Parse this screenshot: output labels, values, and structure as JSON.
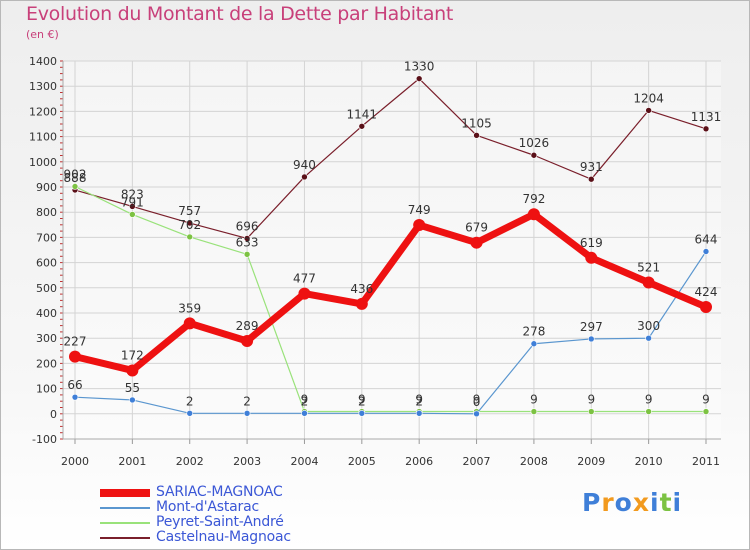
{
  "chart_data": {
    "type": "line",
    "title": "Evolution du Montant de la Dette par Habitant",
    "subtitle": "(en €)",
    "xlabel": "",
    "ylabel": "",
    "categories": [
      "2000",
      "2001",
      "2002",
      "2003",
      "2004",
      "2005",
      "2006",
      "2007",
      "2008",
      "2009",
      "2010",
      "2011"
    ],
    "ylim": [
      -100,
      1400
    ],
    "yticks": [
      -100,
      0,
      100,
      200,
      300,
      400,
      500,
      600,
      700,
      800,
      900,
      1000,
      1100,
      1200,
      1300,
      1400
    ],
    "grid": true,
    "legend_position": "bottom-left",
    "series": [
      {
        "name": "Castelnau-Magnoac",
        "color": "#7a1f2b",
        "values": [
          888,
          823,
          757,
          696,
          940,
          1141,
          1330,
          1105,
          1026,
          931,
          1204,
          1131
        ]
      },
      {
        "name": "Peyret-Saint-André",
        "color": "#99e27a",
        "values": [
          902,
          791,
          702,
          633,
          9,
          9,
          9,
          9,
          9,
          9,
          9,
          9
        ]
      },
      {
        "name": "Mont-d'Astarac",
        "color": "#5a96cf",
        "values": [
          66,
          55,
          2,
          2,
          2,
          2,
          2,
          0,
          278,
          297,
          300,
          644
        ]
      },
      {
        "name": "SARIAC-MAGNOAC",
        "color": "#ee1111",
        "values": [
          227,
          172,
          359,
          289,
          477,
          436,
          749,
          679,
          792,
          619,
          521,
          424
        ]
      }
    ],
    "legend_order": [
      "SARIAC-MAGNOAC",
      "Mont-d'Astarac",
      "Peyret-Saint-André",
      "Castelnau-Magnoac"
    ]
  },
  "logo": {
    "letters": [
      "P",
      "r",
      "o",
      "x",
      "i",
      "t",
      "i"
    ],
    "colors": [
      "#3f7fd8",
      "#f29a1e",
      "#3f7fd8",
      "#f29a1e",
      "#3f7fd8",
      "#7cc242",
      "#3f7fd8"
    ]
  }
}
